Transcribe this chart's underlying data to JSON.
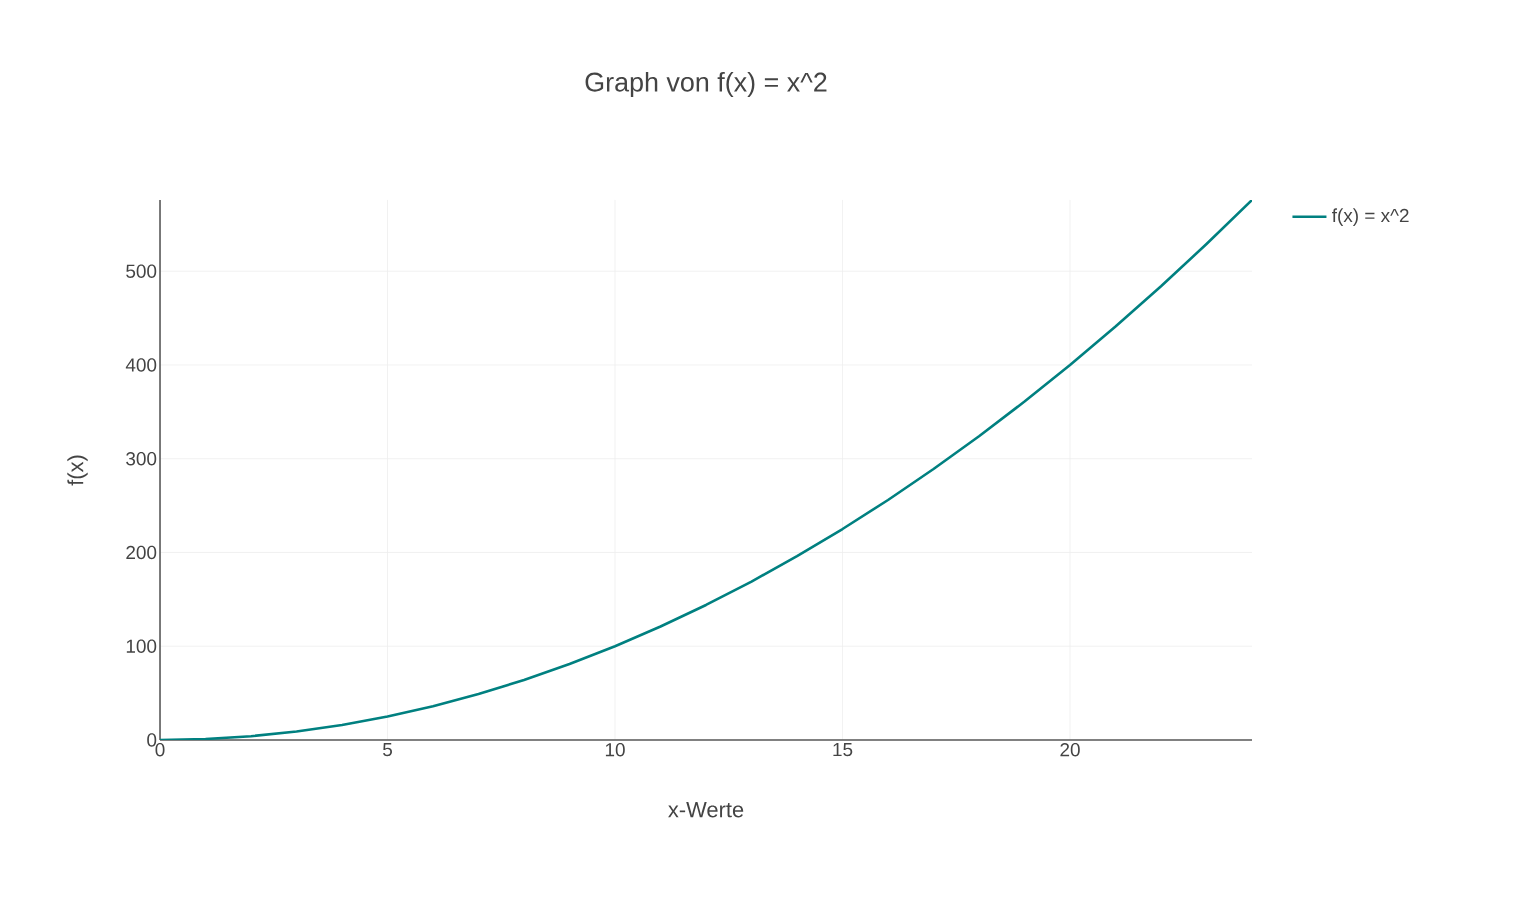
{
  "chart_data": {
    "type": "line",
    "title": "Graph von f(x) = x^2",
    "xlabel": "x-Werte",
    "ylabel": "f(x)",
    "x": [
      0,
      1,
      2,
      3,
      4,
      5,
      6,
      7,
      8,
      9,
      10,
      11,
      12,
      13,
      14,
      15,
      16,
      17,
      18,
      19,
      20,
      21,
      22,
      23,
      24
    ],
    "series": [
      {
        "name": "f(x) = x^2",
        "color": "#008080",
        "values": [
          0,
          1,
          4,
          9,
          16,
          25,
          36,
          49,
          64,
          81,
          100,
          121,
          144,
          169,
          196,
          225,
          256,
          289,
          324,
          361,
          400,
          441,
          484,
          529,
          576
        ]
      }
    ],
    "xlim": [
      0,
      24
    ],
    "ylim": [
      0,
      576
    ],
    "xticks": [
      0,
      5,
      10,
      15,
      20
    ],
    "yticks": [
      0,
      100,
      200,
      300,
      400,
      500
    ],
    "grid": true,
    "legend": "top right",
    "marker": "none",
    "line_style": "solid"
  }
}
